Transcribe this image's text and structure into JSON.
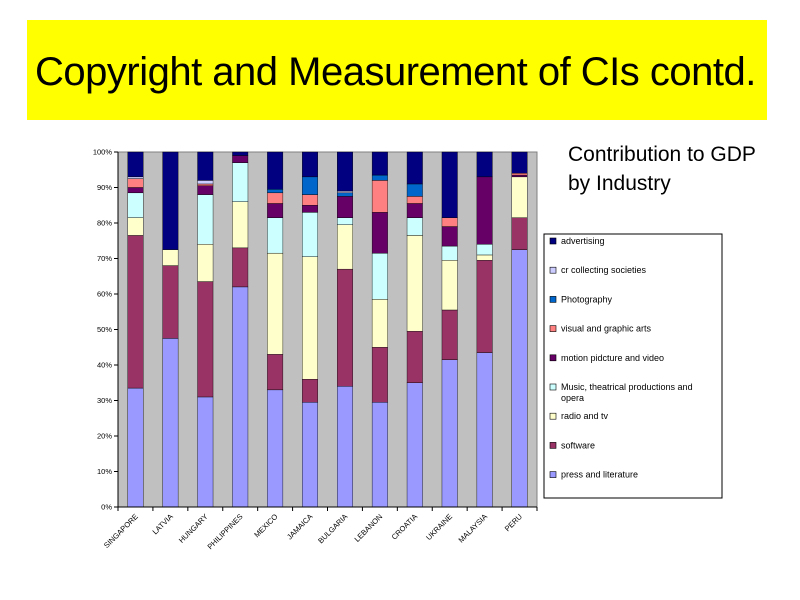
{
  "slide": {
    "title": "Copyright and Measurement of CIs contd.",
    "subtitle_line1": "Contribution to GDP",
    "subtitle_line2": "by Industry",
    "title_band_color": "#ffff00"
  },
  "chart_data": {
    "type": "bar",
    "stacked": true,
    "normalized": true,
    "categories": [
      "SINGAPORE",
      "LATVIA",
      "HUNGARY",
      "PHILIPPINES",
      "MEXICO",
      "JAMAICA",
      "BULGARIA",
      "LEBANON",
      "CROATIA",
      "UKRAINE",
      "MALAYSIA",
      "PERU"
    ],
    "yticks": [
      "0%",
      "10%",
      "20%",
      "30%",
      "40%",
      "50%",
      "60%",
      "70%",
      "80%",
      "90%",
      "100%"
    ],
    "ylim": [
      0,
      100
    ],
    "plot_background": "#c0c0c0",
    "legend_position": "right",
    "series": [
      {
        "name": "press and literature",
        "color": "#9999ff",
        "values": [
          33.5,
          47.5,
          31,
          62,
          33,
          29.5,
          34,
          29.5,
          35,
          41.5,
          43.5,
          72.5
        ]
      },
      {
        "name": "software",
        "color": "#993366",
        "values": [
          43,
          20.5,
          32.5,
          11,
          10,
          6.5,
          33,
          15.5,
          14.5,
          14,
          26,
          9
        ]
      },
      {
        "name": "radio and tv",
        "color": "#ffffcc",
        "values": [
          5,
          4.5,
          10.5,
          13,
          28.5,
          34.5,
          12.5,
          13.5,
          27,
          14,
          1.5,
          11.5
        ]
      },
      {
        "name": "Music, theatrical productions and opera",
        "color": "#ccffff",
        "values": [
          7,
          0,
          14,
          11,
          10,
          12.5,
          2,
          13,
          5,
          4,
          3,
          0
        ]
      },
      {
        "name": "motion pidcture and video",
        "color": "#660066",
        "values": [
          1.5,
          0,
          2.5,
          2,
          4,
          2,
          6,
          11.5,
          4,
          5.5,
          19,
          0.5
        ]
      },
      {
        "name": "visual and graphic arts",
        "color": "#ff8080",
        "values": [
          2.5,
          0,
          0.5,
          0,
          3,
          3,
          0,
          9,
          2,
          2.5,
          0,
          0.5
        ]
      },
      {
        "name": "Photography",
        "color": "#0066cc",
        "values": [
          0,
          0,
          0,
          0,
          1,
          5,
          1,
          1.5,
          3.5,
          0,
          0,
          0
        ]
      },
      {
        "name": "cr collecting societies",
        "color": "#ccccff",
        "values": [
          0.5,
          0,
          1,
          0,
          0,
          0,
          0.5,
          0,
          0,
          0,
          0,
          0
        ]
      },
      {
        "name": "advertising",
        "color": "#000080",
        "values": [
          7,
          27.5,
          8,
          1,
          10.5,
          7,
          11,
          6.5,
          9,
          18.5,
          7,
          6
        ]
      }
    ]
  }
}
